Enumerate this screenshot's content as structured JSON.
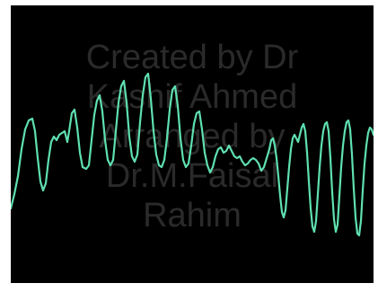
{
  "watermark": {
    "line1": "Created by Dr",
    "line2": "Kashif Ahmed",
    "line3": "Arranged by",
    "line4": "Dr.M.Faisal",
    "line5": "Rahim"
  },
  "colors": {
    "background": "#000000",
    "trace": "#5fe0b0",
    "frame": "#ffffff",
    "watermark": "#2a2a2a"
  }
}
